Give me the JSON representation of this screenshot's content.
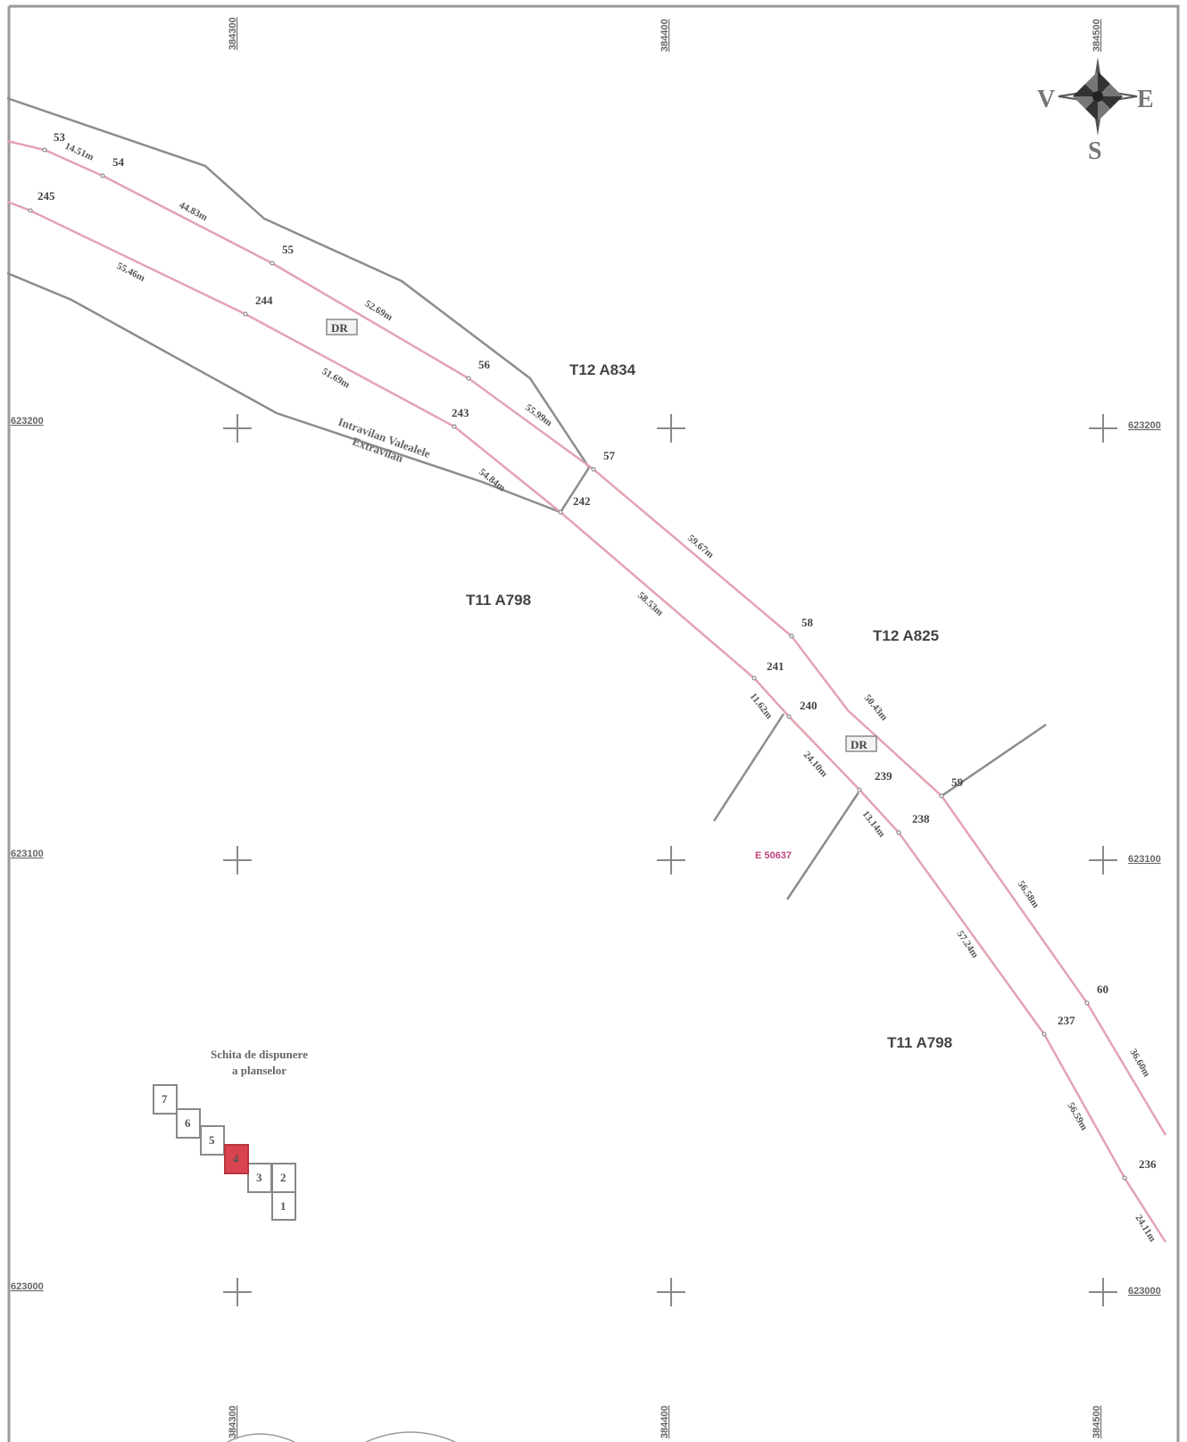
{
  "map": {
    "grid_labels": {
      "top": [
        "384300",
        "384400",
        "384500"
      ],
      "bottom": [
        "384300",
        "384400",
        "384500"
      ],
      "left": [
        "623200",
        "623100",
        "623000"
      ],
      "right": [
        "623200",
        "623100",
        "623000"
      ]
    },
    "compass": {
      "west": "V",
      "east": "E",
      "south": "S"
    },
    "parcels": [
      "T12 A834",
      "T11 A798",
      "T12 A825",
      "T11 A798"
    ],
    "dr_boxes": [
      "DR",
      "DR"
    ],
    "intravilan": {
      "line1": "Intravilan Valealele",
      "line2": "Extravilan"
    },
    "cadastral_ref": "E 50637",
    "north_edge": {
      "points": [
        "53",
        "54",
        "55",
        "56",
        "57",
        "58",
        "59",
        "60"
      ],
      "distances": [
        "14.51m",
        "44.83m",
        "52.69m",
        "55.99m",
        "59.67m",
        "50.43m",
        "56.58m",
        "36.60m"
      ]
    },
    "south_edge": {
      "points": [
        "245",
        "244",
        "243",
        "242",
        "241",
        "240",
        "239",
        "238",
        "237",
        "236"
      ],
      "distances": [
        "55.46m",
        "51.69m",
        "54.84m",
        "58.53m",
        "11.62m",
        "24.10m",
        "13.14m",
        "57.24m",
        "56.59m",
        "24.11m"
      ]
    },
    "sheet_layout": {
      "title_line1": "Schita de dispunere",
      "title_line2": "a planselor",
      "tiles": [
        "7",
        "6",
        "5",
        "4",
        "3",
        "2",
        "1"
      ],
      "current_tile": "4"
    },
    "colors": {
      "road_edge": "#e3a3b2",
      "boundary": "#8c8c8c",
      "highlight": "#d9434f",
      "ref_text": "#c0447e"
    }
  }
}
